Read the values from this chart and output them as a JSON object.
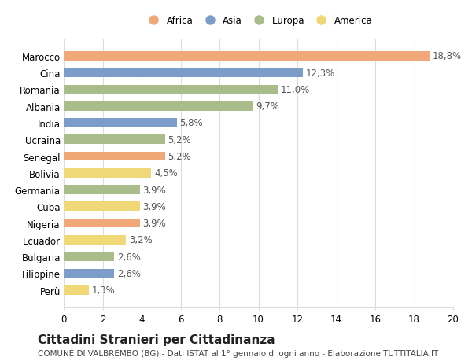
{
  "categories": [
    "Marocco",
    "Cina",
    "Romania",
    "Albania",
    "India",
    "Ucraina",
    "Senegal",
    "Bolivia",
    "Germania",
    "Cuba",
    "Nigeria",
    "Ecuador",
    "Bulgaria",
    "Filippine",
    "Perù"
  ],
  "values": [
    18.8,
    12.3,
    11.0,
    9.7,
    5.8,
    5.2,
    5.2,
    4.5,
    3.9,
    3.9,
    3.9,
    3.2,
    2.6,
    2.6,
    1.3
  ],
  "continents": [
    "Africa",
    "Asia",
    "Europa",
    "Europa",
    "Asia",
    "Europa",
    "Africa",
    "America",
    "Europa",
    "America",
    "Africa",
    "America",
    "Europa",
    "Asia",
    "America"
  ],
  "colors": {
    "Africa": "#F0A878",
    "Asia": "#7B9DC8",
    "Europa": "#A8BC8C",
    "America": "#F0D878"
  },
  "legend_order": [
    "Africa",
    "Asia",
    "Europa",
    "America"
  ],
  "legend_colors": [
    "#F0A878",
    "#7B9DC8",
    "#A8BC8C",
    "#F0D878"
  ],
  "xlim": [
    0,
    20
  ],
  "xticks": [
    0,
    2,
    4,
    6,
    8,
    10,
    12,
    14,
    16,
    18,
    20
  ],
  "title": "Cittadini Stranieri per Cittadinanza",
  "subtitle": "COMUNE DI VALBREMBO (BG) - Dati ISTAT al 1° gennaio di ogni anno - Elaborazione TUTTITALIA.IT",
  "background_color": "#ffffff",
  "grid_color": "#dddddd",
  "label_fontsize": 8.5,
  "title_fontsize": 11,
  "subtitle_fontsize": 7.5
}
